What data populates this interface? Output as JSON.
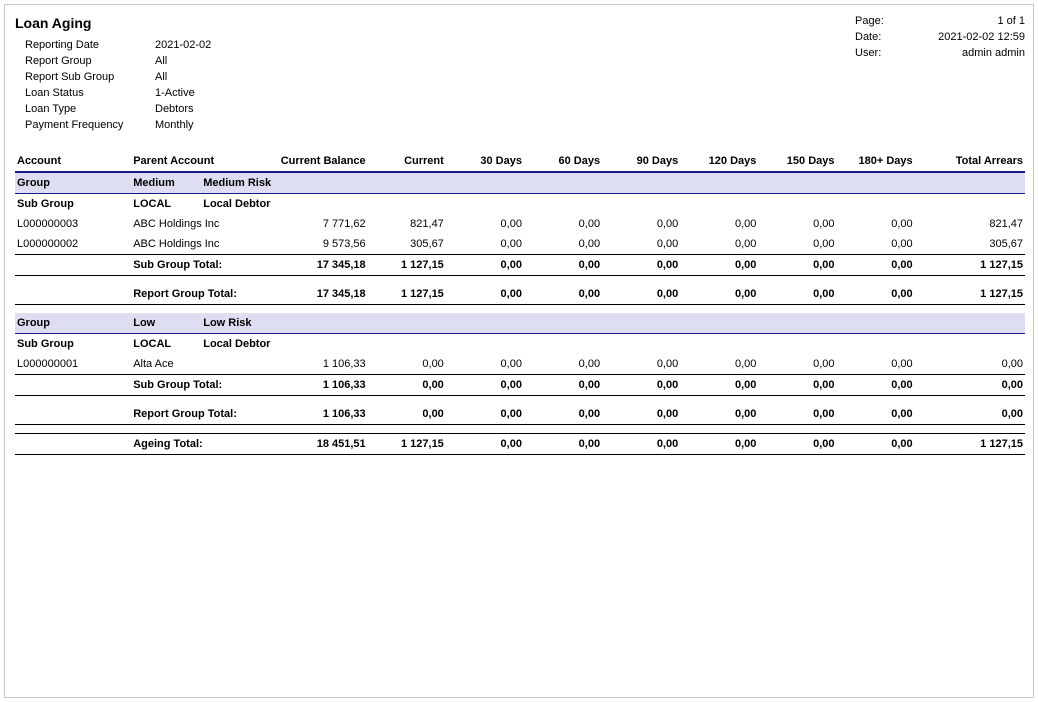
{
  "header": {
    "title": "Loan Aging",
    "left": [
      {
        "k": "Reporting Date",
        "v": "2021-02-02"
      },
      {
        "k": "Report Group",
        "v": "All"
      },
      {
        "k": "Report Sub Group",
        "v": "All"
      },
      {
        "k": "Loan Status",
        "v": "1-Active"
      },
      {
        "k": "Loan Type",
        "v": "Debtors"
      },
      {
        "k": "Payment Frequency",
        "v": "Monthly"
      }
    ],
    "right": [
      {
        "k": "Page:",
        "v": "1 of 1"
      },
      {
        "k": "Date:",
        "v": "2021-02-02 12:59"
      },
      {
        "k": "User:",
        "v": "admin admin"
      }
    ]
  },
  "columns": [
    "Account",
    "Parent Account",
    "Current Balance",
    "Current",
    "30 Days",
    "60 Days",
    "90 Days",
    "120 Days",
    "150 Days",
    "180+ Days",
    "Total Arrears"
  ],
  "labels": {
    "group": "Group",
    "subgroup": "Sub Group",
    "subtotal": "Sub Group Total:",
    "grouptotal": "Report Group Total:",
    "grandtotal": "Ageing Total:"
  },
  "groups": [
    {
      "code": "Medium",
      "name": "Medium Risk",
      "subgroups": [
        {
          "code": "LOCAL",
          "name": "Local Debtor",
          "rows": [
            {
              "account": "L000000003",
              "parent": "ABC Holdings Inc",
              "bal": "7 771,62",
              "cur": "821,47",
              "d30": "0,00",
              "d60": "0,00",
              "d90": "0,00",
              "d120": "0,00",
              "d150": "0,00",
              "d180": "0,00",
              "tot": "821,47"
            },
            {
              "account": "L000000002",
              "parent": "ABC Holdings Inc",
              "bal": "9 573,56",
              "cur": "305,67",
              "d30": "0,00",
              "d60": "0,00",
              "d90": "0,00",
              "d120": "0,00",
              "d150": "0,00",
              "d180": "0,00",
              "tot": "305,67"
            }
          ],
          "total": {
            "bal": "17 345,18",
            "cur": "1 127,15",
            "d30": "0,00",
            "d60": "0,00",
            "d90": "0,00",
            "d120": "0,00",
            "d150": "0,00",
            "d180": "0,00",
            "tot": "1 127,15"
          }
        }
      ],
      "total": {
        "bal": "17 345,18",
        "cur": "1 127,15",
        "d30": "0,00",
        "d60": "0,00",
        "d90": "0,00",
        "d120": "0,00",
        "d150": "0,00",
        "d180": "0,00",
        "tot": "1 127,15"
      }
    },
    {
      "code": "Low",
      "name": "Low Risk",
      "subgroups": [
        {
          "code": "LOCAL",
          "name": "Local Debtor",
          "rows": [
            {
              "account": "L000000001",
              "parent": "Alta Ace",
              "bal": "1 106,33",
              "cur": "0,00",
              "d30": "0,00",
              "d60": "0,00",
              "d90": "0,00",
              "d120": "0,00",
              "d150": "0,00",
              "d180": "0,00",
              "tot": "0,00"
            }
          ],
          "total": {
            "bal": "1 106,33",
            "cur": "0,00",
            "d30": "0,00",
            "d60": "0,00",
            "d90": "0,00",
            "d120": "0,00",
            "d150": "0,00",
            "d180": "0,00",
            "tot": "0,00"
          }
        }
      ],
      "total": {
        "bal": "1 106,33",
        "cur": "0,00",
        "d30": "0,00",
        "d60": "0,00",
        "d90": "0,00",
        "d120": "0,00",
        "d150": "0,00",
        "d180": "0,00",
        "tot": "0,00"
      }
    }
  ],
  "grand": {
    "bal": "18 451,51",
    "cur": "1 127,15",
    "d30": "0,00",
    "d60": "0,00",
    "d90": "0,00",
    "d120": "0,00",
    "d150": "0,00",
    "d180": "0,00",
    "tot": "1 127,15"
  },
  "style": {
    "group_bg": "#dedef2",
    "header_rule": "#1a1a8a",
    "text": "#000000"
  }
}
